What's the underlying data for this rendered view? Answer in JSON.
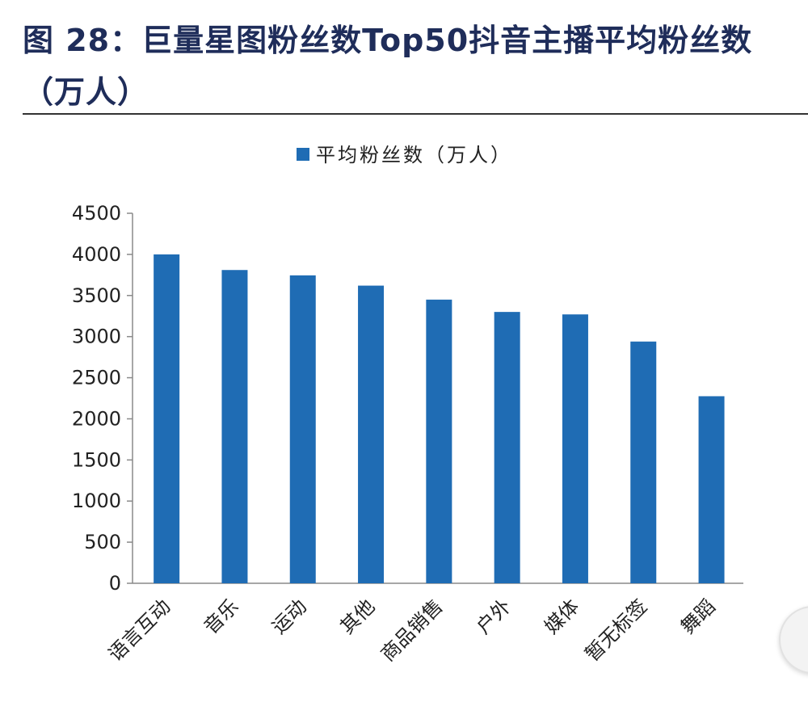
{
  "header": {
    "title": "图 28：巨量星图粉丝数Top50抖音主播平均粉丝数（万人）"
  },
  "chart_data": {
    "type": "bar",
    "title": "",
    "xlabel": "",
    "ylabel": "",
    "categories": [
      "语言互动",
      "音乐",
      "运动",
      "其他",
      "商品销售",
      "户外",
      "媒体",
      "暂无标签",
      "舞蹈"
    ],
    "series": [
      {
        "name": "平均粉丝数（万人）",
        "values": [
          4000,
          3810,
          3745,
          3620,
          3450,
          3300,
          3270,
          2940,
          2275
        ]
      }
    ],
    "ylim": [
      0,
      4500
    ],
    "yticks": [
      "0",
      "500",
      "1000",
      "1500",
      "2000",
      "2500",
      "3000",
      "3500",
      "4000",
      "4500"
    ],
    "grid": false,
    "legend_position": "top-center",
    "bar_color": "#1f6cb4"
  }
}
